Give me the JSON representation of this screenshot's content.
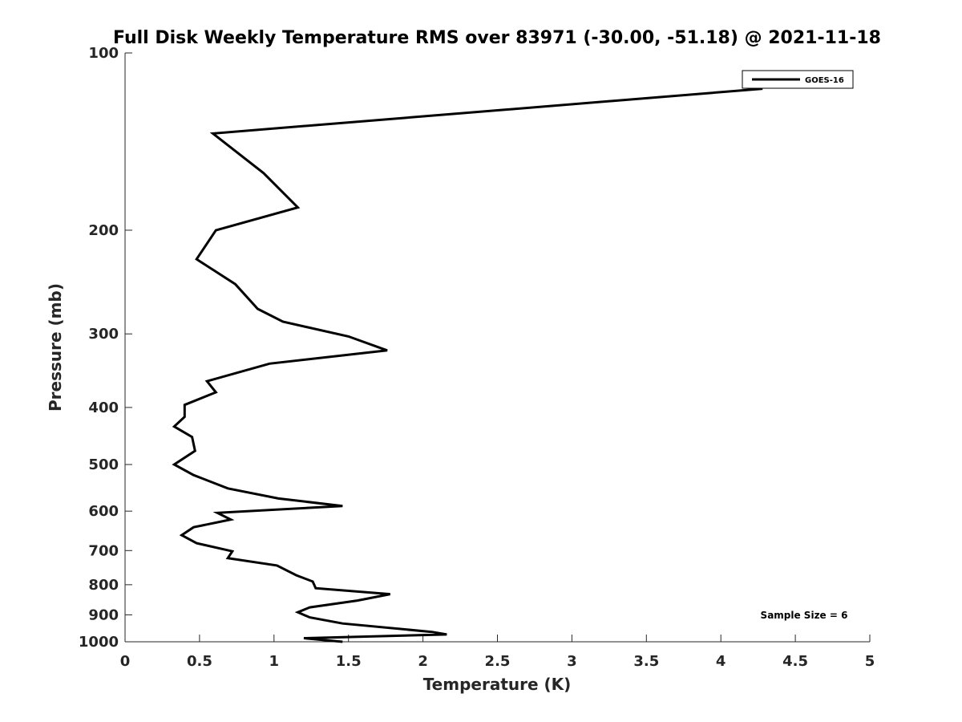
{
  "chart_data": {
    "type": "line",
    "title": "Full Disk Weekly Temperature RMS over 83971 (-30.00, -51.18) @ 2021-11-18",
    "xlabel": "Temperature (K)",
    "ylabel": "Pressure (mb)",
    "xlim": [
      0,
      5
    ],
    "ylim": [
      100,
      1000
    ],
    "y_scale": "log",
    "y_reversed": true,
    "x_ticks": [
      0,
      0.5,
      1,
      1.5,
      2,
      2.5,
      3,
      3.5,
      4,
      4.5,
      5
    ],
    "x_tick_labels": [
      "0",
      "0.5",
      "1",
      "1.5",
      "2",
      "2.5",
      "3",
      "3.5",
      "4",
      "4.5",
      "5"
    ],
    "y_ticks": [
      100,
      200,
      300,
      400,
      500,
      600,
      700,
      800,
      900,
      1000
    ],
    "y_tick_labels": [
      "100",
      "200",
      "300",
      "400",
      "500",
      "600",
      "700",
      "800",
      "900",
      "1000"
    ],
    "grid": false,
    "legend_position": "top-right",
    "annotation": "Sample Size = 6",
    "series": [
      {
        "name": "GOES-16",
        "color": "#000000",
        "points": [
          [
            4.28,
            115
          ],
          [
            0.59,
            137
          ],
          [
            0.93,
            160
          ],
          [
            1.16,
            183
          ],
          [
            0.61,
            200
          ],
          [
            0.48,
            224
          ],
          [
            0.74,
            247
          ],
          [
            0.89,
            272
          ],
          [
            1.06,
            286
          ],
          [
            1.5,
            303
          ],
          [
            1.76,
            320
          ],
          [
            0.97,
            337
          ],
          [
            0.55,
            361
          ],
          [
            0.61,
            377
          ],
          [
            0.4,
            396
          ],
          [
            0.4,
            415
          ],
          [
            0.33,
            431
          ],
          [
            0.45,
            449
          ],
          [
            0.47,
            474
          ],
          [
            0.33,
            500
          ],
          [
            0.46,
            521
          ],
          [
            0.69,
            549
          ],
          [
            1.03,
            571
          ],
          [
            1.46,
            588
          ],
          [
            0.62,
            604
          ],
          [
            0.71,
            620
          ],
          [
            0.46,
            639
          ],
          [
            0.38,
            659
          ],
          [
            0.48,
            680
          ],
          [
            0.72,
            702
          ],
          [
            0.69,
            721
          ],
          [
            1.02,
            742
          ],
          [
            1.15,
            771
          ],
          [
            1.26,
            790
          ],
          [
            1.28,
            811
          ],
          [
            1.78,
            830
          ],
          [
            1.56,
            851
          ],
          [
            1.24,
            874
          ],
          [
            1.16,
            891
          ],
          [
            1.24,
            909
          ],
          [
            1.46,
            931
          ],
          [
            2.06,
            962
          ],
          [
            2.16,
            972
          ],
          [
            1.2,
            986
          ],
          [
            1.46,
            1000
          ]
        ]
      }
    ]
  }
}
